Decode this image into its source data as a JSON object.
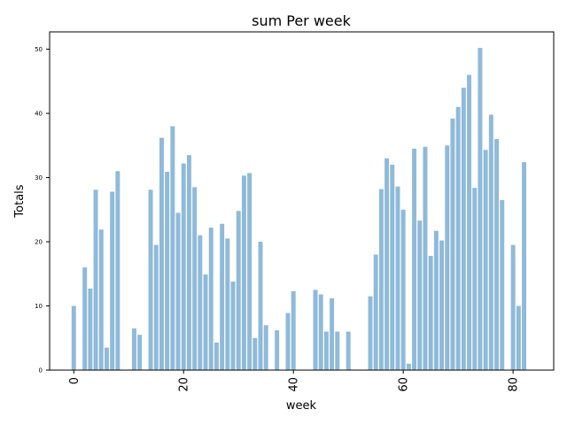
{
  "chart_data": {
    "type": "bar",
    "title": "sum Per week",
    "xlabel": "week",
    "ylabel": "Totals",
    "xlim": [
      -4.4,
      87.4
    ],
    "ylim": [
      0,
      52.7
    ],
    "xticks": [
      0,
      20,
      40,
      60,
      80
    ],
    "yticks": [
      0,
      10,
      20,
      30,
      40,
      50
    ],
    "grid": false,
    "colors": {
      "bar": "#8fbad9",
      "axis": "#000000"
    },
    "x": [
      0,
      2,
      3,
      4,
      5,
      6,
      7,
      8,
      11,
      12,
      14,
      15,
      16,
      17,
      18,
      19,
      20,
      21,
      22,
      23,
      24,
      25,
      26,
      27,
      28,
      29,
      30,
      31,
      32,
      33,
      34,
      35,
      37,
      39,
      40,
      44,
      45,
      46,
      47,
      48,
      50,
      54,
      55,
      56,
      57,
      58,
      59,
      60,
      61,
      62,
      63,
      64,
      65,
      66,
      67,
      68,
      69,
      70,
      71,
      72,
      73,
      74,
      75,
      76,
      77,
      78,
      80,
      81,
      82
    ],
    "values": [
      10.0,
      16.0,
      12.7,
      28.1,
      21.9,
      3.5,
      27.8,
      31.0,
      6.5,
      5.5,
      28.1,
      19.5,
      36.2,
      30.9,
      38.0,
      24.5,
      32.2,
      33.5,
      28.5,
      21.0,
      14.9,
      22.2,
      4.3,
      22.8,
      20.5,
      13.8,
      24.8,
      30.3,
      30.7,
      5.0,
      20.0,
      7.0,
      6.2,
      8.9,
      12.3,
      12.5,
      11.8,
      6.0,
      11.2,
      6.0,
      6.0,
      11.5,
      18.0,
      28.2,
      33.0,
      32.0,
      28.6,
      25.0,
      1.0,
      34.5,
      23.3,
      34.8,
      17.8,
      21.7,
      20.2,
      35.0,
      39.2,
      41.0,
      44.0,
      46.0,
      28.4,
      50.2,
      34.3,
      39.8,
      36.0,
      26.5,
      19.5,
      10.0,
      32.4
    ]
  }
}
